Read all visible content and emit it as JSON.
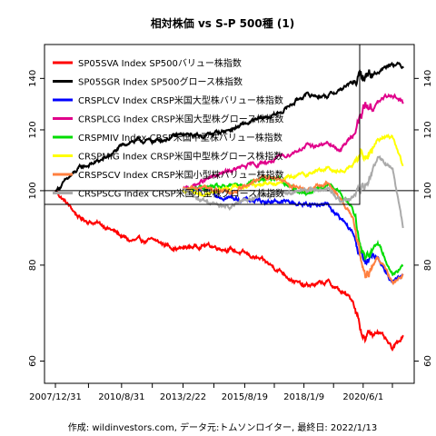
{
  "chart_data": {
    "type": "line",
    "title": "相対株価 vs S-P 500種 (1)",
    "caption": "作成: wildinvestors.com, データ元:トムソンロイター, 最終日: 2022/1/13",
    "xlabel": "",
    "ylabel": "",
    "x_start": "2007/12/31",
    "x_end": "2022/1/13",
    "x_ticks": [
      "2007/12/31",
      "2010/8/31",
      "2013/2/22",
      "2015/8/19",
      "2018/1/9",
      "2020/6/1"
    ],
    "y_scale": "log",
    "ylim": [
      58,
      150
    ],
    "y_ticks": [
      60,
      80,
      100,
      120,
      140
    ],
    "reference_line": 100,
    "grid": false,
    "legend_position": "top-left",
    "series": [
      {
        "name": "SP05SVA Index SP500バリュー株指数",
        "color": "#ff0000",
        "points": [
          [
            0,
            100
          ],
          [
            1,
            92
          ],
          [
            2,
            90
          ],
          [
            3,
            86
          ],
          [
            4,
            86
          ],
          [
            5,
            84
          ],
          [
            6,
            85
          ],
          [
            7,
            84
          ],
          [
            8,
            82
          ],
          [
            9,
            79
          ],
          [
            10,
            75
          ],
          [
            11,
            76
          ],
          [
            12,
            72
          ],
          [
            12.5,
            64
          ],
          [
            13,
            66
          ],
          [
            13.6,
            62
          ],
          [
            14.04,
            65
          ]
        ]
      },
      {
        "name": "SP05SGR Index SP500グロース株指数",
        "color": "#000000",
        "points": [
          [
            0,
            100
          ],
          [
            1,
            107
          ],
          [
            2,
            110
          ],
          [
            3,
            116
          ],
          [
            4,
            116
          ],
          [
            5,
            118
          ],
          [
            6,
            118
          ],
          [
            7,
            120
          ],
          [
            8,
            123
          ],
          [
            9,
            126
          ],
          [
            10,
            133
          ],
          [
            11,
            133
          ],
          [
            12,
            138
          ],
          [
            12.5,
            141
          ],
          [
            13,
            143
          ],
          [
            13.6,
            147
          ],
          [
            14.04,
            145
          ]
        ]
      },
      {
        "name": "CRSPLCV Index CRSP米国大型株バリュー株指数",
        "color": "#0000ff",
        "points": [
          [
            5.15,
            100
          ],
          [
            6,
            100
          ],
          [
            7,
            98
          ],
          [
            8,
            97
          ],
          [
            9,
            97
          ],
          [
            10,
            96
          ],
          [
            11,
            96
          ],
          [
            11.5,
            92
          ],
          [
            12,
            88
          ],
          [
            12.5,
            80
          ],
          [
            13,
            82
          ],
          [
            13.6,
            76
          ],
          [
            14.04,
            77
          ]
        ]
      },
      {
        "name": "CRSPLCG Index CRSP米国大型株グロース株指数",
        "color": "#e0008a",
        "points": [
          [
            5.15,
            100
          ],
          [
            6,
            103
          ],
          [
            7,
            106
          ],
          [
            8,
            108
          ],
          [
            9,
            110
          ],
          [
            10,
            114
          ],
          [
            11,
            115
          ],
          [
            11.5,
            113
          ],
          [
            12,
            118
          ],
          [
            12.5,
            128
          ],
          [
            13,
            130
          ],
          [
            13.6,
            134
          ],
          [
            14.04,
            130
          ]
        ]
      },
      {
        "name": "CRSPMIV Index CRSP米国中型株バリュー株指数",
        "color": "#00dd00",
        "points": [
          [
            5.15,
            100
          ],
          [
            6,
            101
          ],
          [
            7,
            101
          ],
          [
            8,
            103
          ],
          [
            9,
            104
          ],
          [
            10,
            99
          ],
          [
            11,
            102
          ],
          [
            11.5,
            99
          ],
          [
            12,
            95
          ],
          [
            12.5,
            82
          ],
          [
            13,
            86
          ],
          [
            13.6,
            78
          ],
          [
            14.04,
            80
          ]
        ]
      },
      {
        "name": "CRSPMIG Index CRSP米国中型株グロース株指数",
        "color": "#ffff00",
        "points": [
          [
            5.15,
            100
          ],
          [
            6,
            99
          ],
          [
            7,
            101
          ],
          [
            8,
            102
          ],
          [
            9,
            103
          ],
          [
            10,
            105
          ],
          [
            11,
            107
          ],
          [
            11.5,
            106
          ],
          [
            12,
            108
          ],
          [
            12.5,
            112
          ],
          [
            13,
            117
          ],
          [
            13.6,
            118
          ],
          [
            14.04,
            107
          ]
        ]
      },
      {
        "name": "CRSPSCV Index CRSP米国小型株バリュー株指数",
        "color": "#ff8040",
        "points": [
          [
            5.15,
            100
          ],
          [
            6,
            101
          ],
          [
            7,
            99
          ],
          [
            8,
            103
          ],
          [
            9,
            104
          ],
          [
            10,
            100
          ],
          [
            11,
            102
          ],
          [
            11.5,
            98
          ],
          [
            12,
            92
          ],
          [
            12.5,
            76
          ],
          [
            13,
            82
          ],
          [
            13.6,
            76
          ],
          [
            14.04,
            78
          ]
        ]
      },
      {
        "name": "CRSPSCG Index CRSP米国小型株グロース株指数",
        "color": "#aaaaaa",
        "points": [
          [
            5.15,
            100
          ],
          [
            6,
            97
          ],
          [
            7,
            95
          ],
          [
            8,
            98
          ],
          [
            9,
            99
          ],
          [
            10,
            100
          ],
          [
            11,
            101
          ],
          [
            11.5,
            97
          ],
          [
            12,
            98
          ],
          [
            12.5,
            101
          ],
          [
            13,
            110
          ],
          [
            13.6,
            107
          ],
          [
            14.04,
            89
          ]
        ]
      }
    ]
  }
}
